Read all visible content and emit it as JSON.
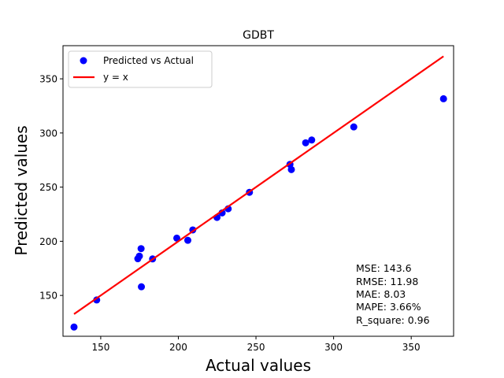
{
  "chart_data": {
    "type": "scatter",
    "title": "GDBT",
    "xlabel": "Actual values",
    "ylabel": "Predicted values",
    "xlim": [
      125.7,
      377.3
    ],
    "ylim": [
      112.3,
      380.6
    ],
    "xticks": [
      150,
      200,
      250,
      300,
      350
    ],
    "yticks": [
      150,
      200,
      250,
      300,
      350
    ],
    "grid": false,
    "legend_position": "upper-left",
    "series": [
      {
        "name": "Predicted vs Actual",
        "kind": "scatter",
        "color": "#0000ff",
        "points": [
          [
            132.8,
            120.8
          ],
          [
            147.4,
            145.8
          ],
          [
            173.9,
            183.9
          ],
          [
            174.9,
            186.3
          ],
          [
            176.0,
            193.2
          ],
          [
            176.2,
            158.0
          ],
          [
            183.4,
            183.7
          ],
          [
            199.0,
            202.9
          ],
          [
            206.1,
            200.9
          ],
          [
            209.3,
            210.5
          ],
          [
            224.9,
            222.0
          ],
          [
            228.2,
            226.2
          ],
          [
            232.1,
            230.0
          ],
          [
            245.8,
            245.2
          ],
          [
            271.9,
            271.0
          ],
          [
            272.8,
            266.2
          ],
          [
            282.0,
            290.9
          ],
          [
            285.9,
            293.5
          ],
          [
            313.0,
            305.6
          ],
          [
            370.8,
            331.6
          ]
        ]
      },
      {
        "name": "y = x",
        "kind": "line",
        "color": "#ff0000",
        "points": [
          [
            132.8,
            132.8
          ],
          [
            370.8,
            370.8
          ]
        ]
      }
    ],
    "annotation": {
      "position": "lower-right",
      "lines": [
        "MSE: 143.6",
        "RMSE: 11.98",
        "MAE: 8.03",
        "MAPE: 3.66%",
        "R_square: 0.96"
      ]
    }
  }
}
